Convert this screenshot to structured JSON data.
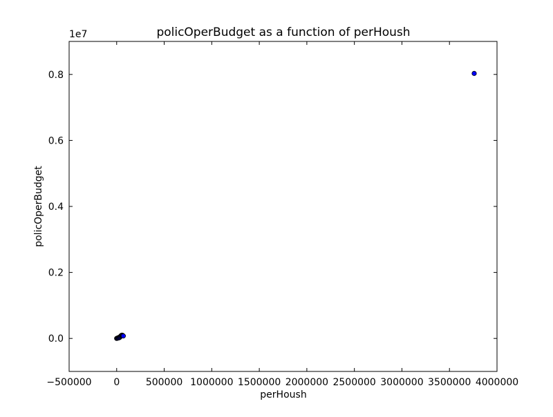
{
  "chart_data": {
    "type": "scatter",
    "title": "policOperBudget as a function of perHoush",
    "xlabel": "perHoush",
    "ylabel": "policOperBudget",
    "xlim": [
      -500000,
      4000000
    ],
    "ylim": [
      -1000000,
      9000000
    ],
    "y_multiplier_label": "1e7",
    "x_ticks": [
      {
        "value": -500000,
        "label": "−500000"
      },
      {
        "value": 0,
        "label": "0"
      },
      {
        "value": 500000,
        "label": "500000"
      },
      {
        "value": 1000000,
        "label": "1000000"
      },
      {
        "value": 1500000,
        "label": "1500000"
      },
      {
        "value": 2000000,
        "label": "2000000"
      },
      {
        "value": 2500000,
        "label": "2500000"
      },
      {
        "value": 3000000,
        "label": "3000000"
      },
      {
        "value": 3500000,
        "label": "3500000"
      },
      {
        "value": 4000000,
        "label": "4000000"
      }
    ],
    "y_ticks": [
      {
        "value": 0,
        "label": "0.0"
      },
      {
        "value": 2000000,
        "label": "0.2"
      },
      {
        "value": 4000000,
        "label": "0.4"
      },
      {
        "value": 6000000,
        "label": "0.6"
      },
      {
        "value": 8000000,
        "label": "0.8"
      }
    ],
    "grid": false,
    "marker_color": "#0000ff",
    "marker_edge_color": "#000000",
    "points": [
      {
        "x": 3760000,
        "y": 8030000
      },
      {
        "x": 0,
        "y": 0
      },
      {
        "x": 5000,
        "y": 5000
      },
      {
        "x": 10000,
        "y": 10000
      },
      {
        "x": 15000,
        "y": 20000
      },
      {
        "x": 20000,
        "y": 15000
      },
      {
        "x": 25000,
        "y": 30000
      },
      {
        "x": 30000,
        "y": 25000
      },
      {
        "x": 35000,
        "y": 45000
      },
      {
        "x": 40000,
        "y": 60000
      },
      {
        "x": 45000,
        "y": 80000
      },
      {
        "x": 50000,
        "y": 90000
      },
      {
        "x": 55000,
        "y": 100000
      },
      {
        "x": 60000,
        "y": 95000
      },
      {
        "x": 65000,
        "y": 85000
      },
      {
        "x": 70000,
        "y": 75000
      }
    ]
  }
}
